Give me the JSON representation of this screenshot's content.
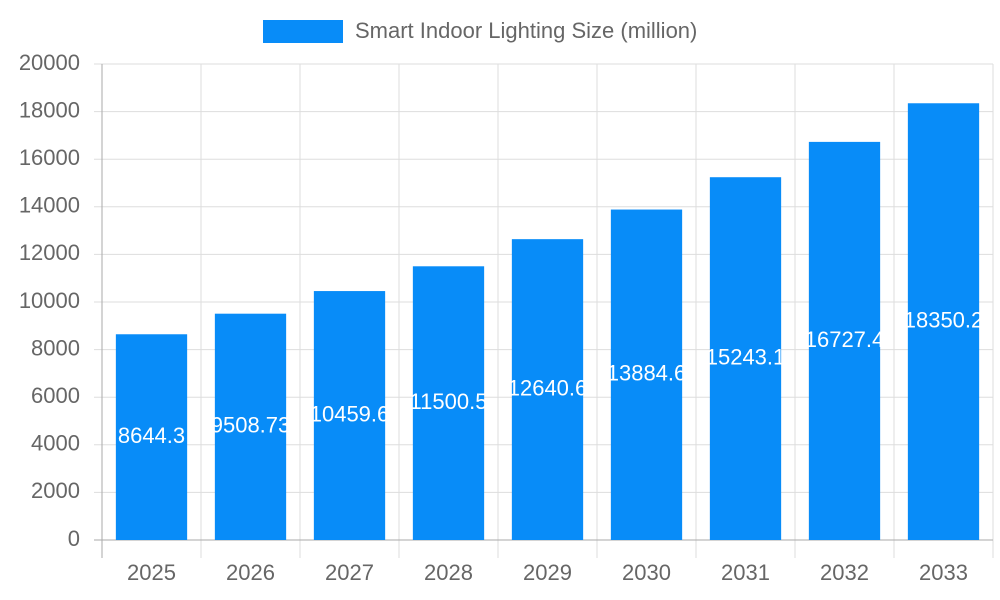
{
  "chart_data": {
    "type": "bar",
    "categories": [
      "2025",
      "2026",
      "2027",
      "2028",
      "2029",
      "2030",
      "2031",
      "2032",
      "2033"
    ],
    "series": [
      {
        "name": "Smart Indoor Lighting Size (million)",
        "color": "#088cf8",
        "values": [
          8644.3,
          9508.73,
          10459.6,
          11500.5,
          12640.6,
          13884.6,
          15243.1,
          16727.4,
          18350.2
        ]
      }
    ],
    "ylim": [
      0,
      20000
    ],
    "yticks": [
      0,
      2000,
      4000,
      6000,
      8000,
      10000,
      12000,
      14000,
      16000,
      18000,
      20000
    ],
    "grid": true,
    "legend": "top"
  }
}
